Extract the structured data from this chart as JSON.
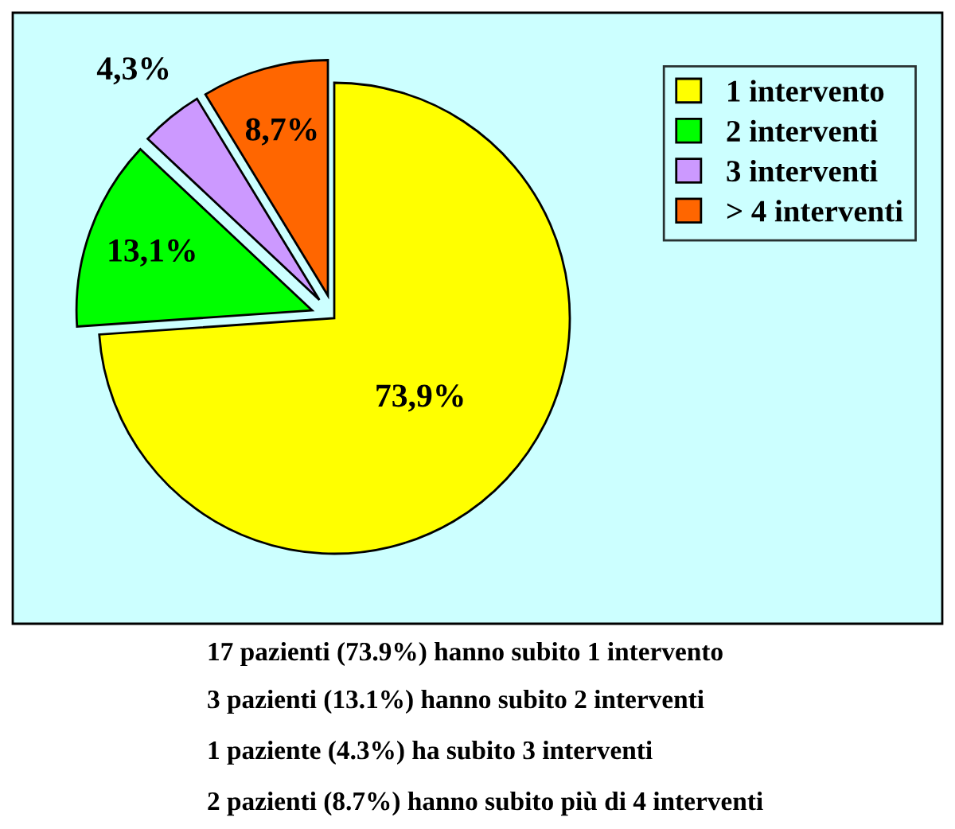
{
  "chart_data": {
    "type": "pie",
    "categories": [
      "1 intervento",
      "2 interventi",
      "3 interventi",
      "> 4 interventi"
    ],
    "values": [
      73.9,
      13.1,
      4.3,
      8.7
    ],
    "colors": [
      "#ffff00",
      "#00ff00",
      "#cc99ff",
      "#ff6600"
    ],
    "value_labels": [
      "73,9%",
      "13,1%",
      "4,3%",
      "8,7%"
    ],
    "legend": "top right",
    "annotations": [
      "17 pazienti (73.9%) hanno subito 1 intervento",
      "3 pazienti (13.1%) hanno subito 2 interventi",
      "1 paziente (4.3%) ha subito 3 interventi",
      "2 pazienti (8.7%) hanno subito più di 4 interventi"
    ]
  }
}
